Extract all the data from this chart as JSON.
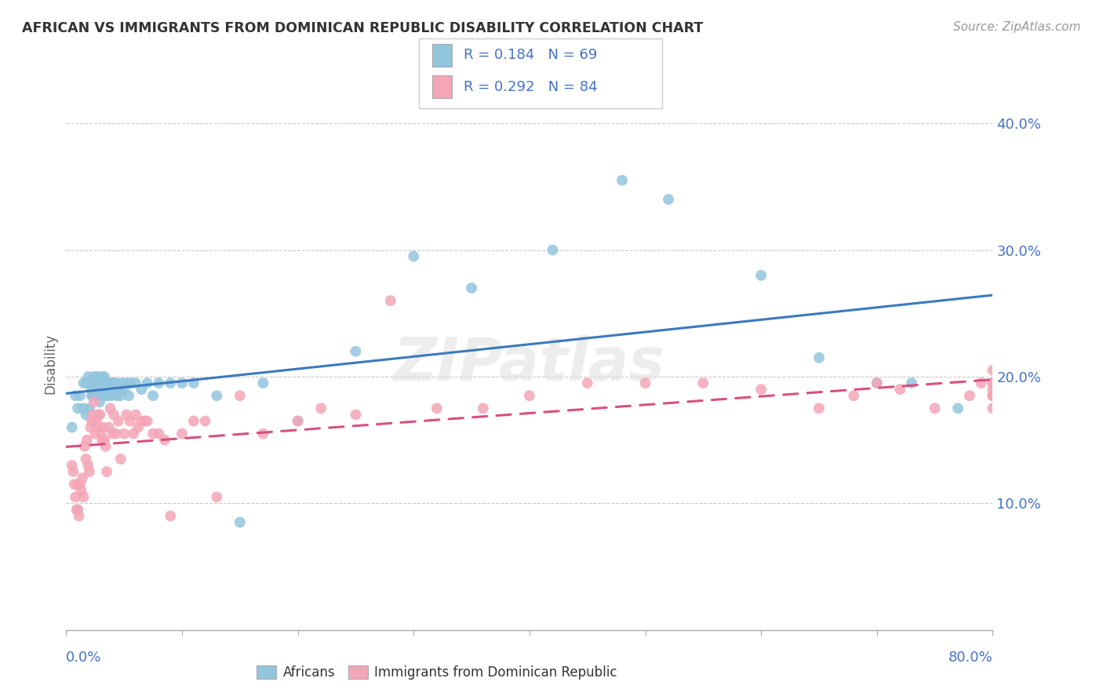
{
  "title": "AFRICAN VS IMMIGRANTS FROM DOMINICAN REPUBLIC DISABILITY CORRELATION CHART",
  "source": "Source: ZipAtlas.com",
  "ylabel": "Disability",
  "xlim": [
    0.0,
    0.8
  ],
  "ylim": [
    0.0,
    0.42
  ],
  "blue_color": "#92c5de",
  "pink_color": "#f4a6b8",
  "blue_line_color": "#3a7abf",
  "pink_line_color": "#d94f7e",
  "R_blue": 0.184,
  "N_blue": 69,
  "R_pink": 0.292,
  "N_pink": 84,
  "legend_label_blue": "Africans",
  "legend_label_pink": "Immigrants from Dominican Republic",
  "watermark": "ZIPatlas",
  "background_color": "#ffffff",
  "grid_color": "#bbbbbb",
  "title_color": "#333333",
  "axis_label_color": "#4472c4",
  "blue_scatter_x": [
    0.005,
    0.008,
    0.01,
    0.012,
    0.015,
    0.015,
    0.017,
    0.018,
    0.019,
    0.02,
    0.02,
    0.022,
    0.022,
    0.023,
    0.024,
    0.025,
    0.025,
    0.026,
    0.027,
    0.028,
    0.028,
    0.029,
    0.03,
    0.03,
    0.031,
    0.032,
    0.033,
    0.034,
    0.035,
    0.036,
    0.037,
    0.038,
    0.039,
    0.04,
    0.041,
    0.042,
    0.043,
    0.044,
    0.045,
    0.046,
    0.047,
    0.048,
    0.05,
    0.052,
    0.054,
    0.056,
    0.06,
    0.065,
    0.07,
    0.075,
    0.08,
    0.09,
    0.1,
    0.11,
    0.13,
    0.15,
    0.17,
    0.2,
    0.25,
    0.3,
    0.35,
    0.42,
    0.48,
    0.52,
    0.6,
    0.65,
    0.7,
    0.73,
    0.77
  ],
  "blue_scatter_y": [
    0.16,
    0.185,
    0.175,
    0.185,
    0.175,
    0.195,
    0.17,
    0.195,
    0.2,
    0.195,
    0.175,
    0.19,
    0.185,
    0.185,
    0.2,
    0.195,
    0.19,
    0.19,
    0.2,
    0.195,
    0.185,
    0.18,
    0.195,
    0.185,
    0.2,
    0.195,
    0.2,
    0.185,
    0.185,
    0.19,
    0.185,
    0.195,
    0.185,
    0.195,
    0.195,
    0.195,
    0.195,
    0.185,
    0.19,
    0.19,
    0.185,
    0.195,
    0.19,
    0.195,
    0.185,
    0.195,
    0.195,
    0.19,
    0.195,
    0.185,
    0.195,
    0.195,
    0.195,
    0.195,
    0.185,
    0.085,
    0.195,
    0.165,
    0.22,
    0.295,
    0.27,
    0.3,
    0.355,
    0.34,
    0.28,
    0.215,
    0.195,
    0.195,
    0.175
  ],
  "pink_scatter_x": [
    0.005,
    0.006,
    0.007,
    0.008,
    0.009,
    0.01,
    0.01,
    0.011,
    0.012,
    0.013,
    0.014,
    0.015,
    0.016,
    0.017,
    0.018,
    0.019,
    0.02,
    0.021,
    0.022,
    0.023,
    0.024,
    0.025,
    0.026,
    0.027,
    0.028,
    0.029,
    0.03,
    0.031,
    0.032,
    0.033,
    0.034,
    0.035,
    0.037,
    0.038,
    0.04,
    0.041,
    0.043,
    0.045,
    0.047,
    0.05,
    0.052,
    0.055,
    0.058,
    0.06,
    0.062,
    0.065,
    0.068,
    0.07,
    0.075,
    0.08,
    0.085,
    0.09,
    0.1,
    0.11,
    0.12,
    0.13,
    0.15,
    0.17,
    0.2,
    0.22,
    0.25,
    0.28,
    0.32,
    0.36,
    0.4,
    0.45,
    0.5,
    0.55,
    0.6,
    0.65,
    0.68,
    0.7,
    0.72,
    0.75,
    0.78,
    0.79,
    0.8,
    0.8,
    0.8,
    0.8,
    0.8,
    0.8,
    0.8,
    0.8
  ],
  "pink_scatter_y": [
    0.13,
    0.125,
    0.115,
    0.105,
    0.095,
    0.115,
    0.095,
    0.09,
    0.115,
    0.11,
    0.12,
    0.105,
    0.145,
    0.135,
    0.15,
    0.13,
    0.125,
    0.16,
    0.165,
    0.17,
    0.18,
    0.155,
    0.165,
    0.16,
    0.17,
    0.17,
    0.155,
    0.15,
    0.16,
    0.15,
    0.145,
    0.125,
    0.16,
    0.175,
    0.155,
    0.17,
    0.155,
    0.165,
    0.135,
    0.155,
    0.17,
    0.165,
    0.155,
    0.17,
    0.16,
    0.165,
    0.165,
    0.165,
    0.155,
    0.155,
    0.15,
    0.09,
    0.155,
    0.165,
    0.165,
    0.105,
    0.185,
    0.155,
    0.165,
    0.175,
    0.17,
    0.26,
    0.175,
    0.175,
    0.185,
    0.195,
    0.195,
    0.195,
    0.19,
    0.175,
    0.185,
    0.195,
    0.19,
    0.175,
    0.185,
    0.195,
    0.195,
    0.185,
    0.195,
    0.175,
    0.185,
    0.19,
    0.195,
    0.205
  ]
}
